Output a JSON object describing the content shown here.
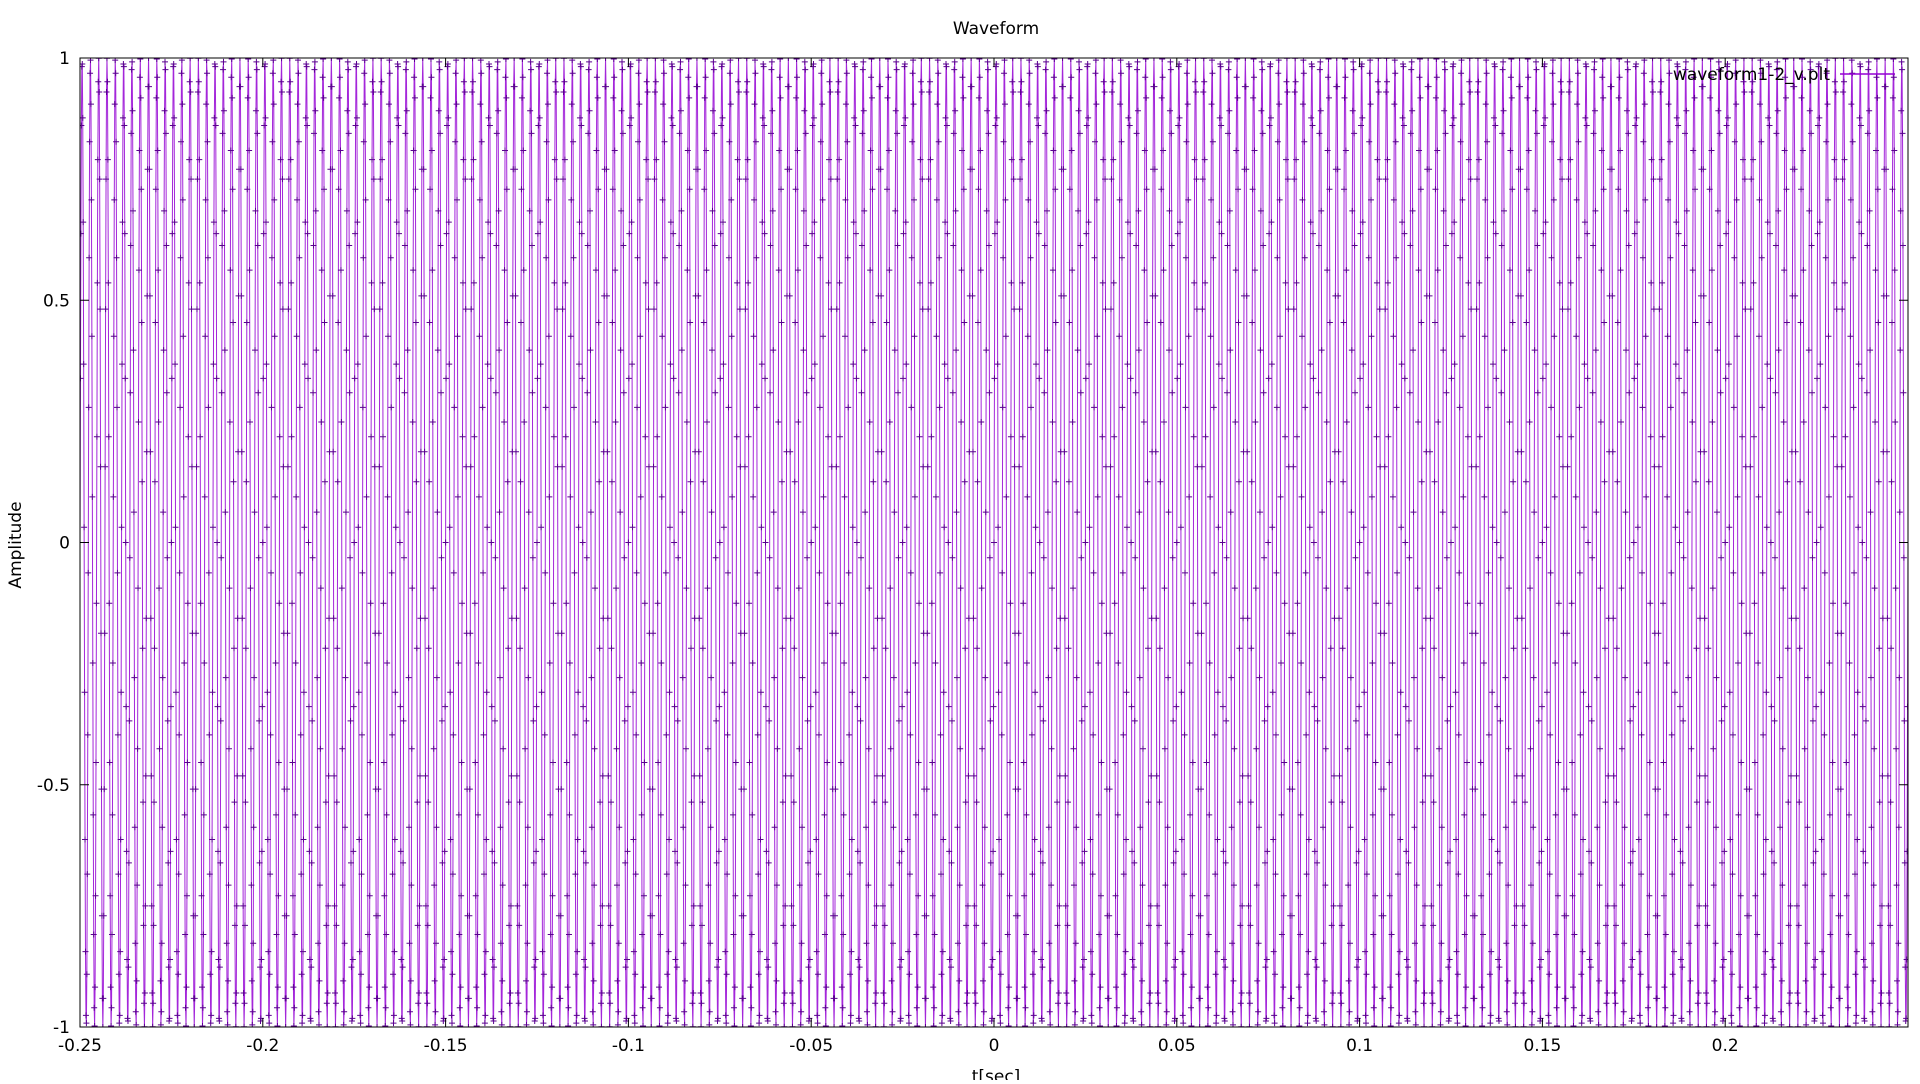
{
  "chart_data": {
    "type": "line",
    "title": "Waveform",
    "xlabel": "t[sec]",
    "ylabel": "Amplitude",
    "xlim": [
      -0.25,
      0.25
    ],
    "ylim": [
      -1,
      1
    ],
    "x_ticks": [
      -0.25,
      -0.2,
      -0.15,
      -0.1,
      -0.05,
      0,
      0.05,
      0.1,
      0.15,
      0.2
    ],
    "x_tick_labels": [
      "-0.25",
      "-0.2",
      "-0.15",
      "-0.1",
      "-0.05",
      "0",
      "0.05",
      "0.1",
      "0.15",
      "0.2"
    ],
    "y_ticks": [
      -1,
      -0.5,
      0,
      0.5,
      1
    ],
    "y_tick_labels": [
      "-1",
      "-0.5",
      "0",
      "0.5",
      "1"
    ],
    "grid": false,
    "legend_position": "top-right",
    "marker": "plus",
    "series": [
      {
        "name": "waveform1-2_v.plt",
        "color": "#9400d3",
        "signal": "sinusoid",
        "amplitude": 1.0,
        "frequency_hz": 440,
        "sample_rate_hz": 8000
      }
    ]
  }
}
